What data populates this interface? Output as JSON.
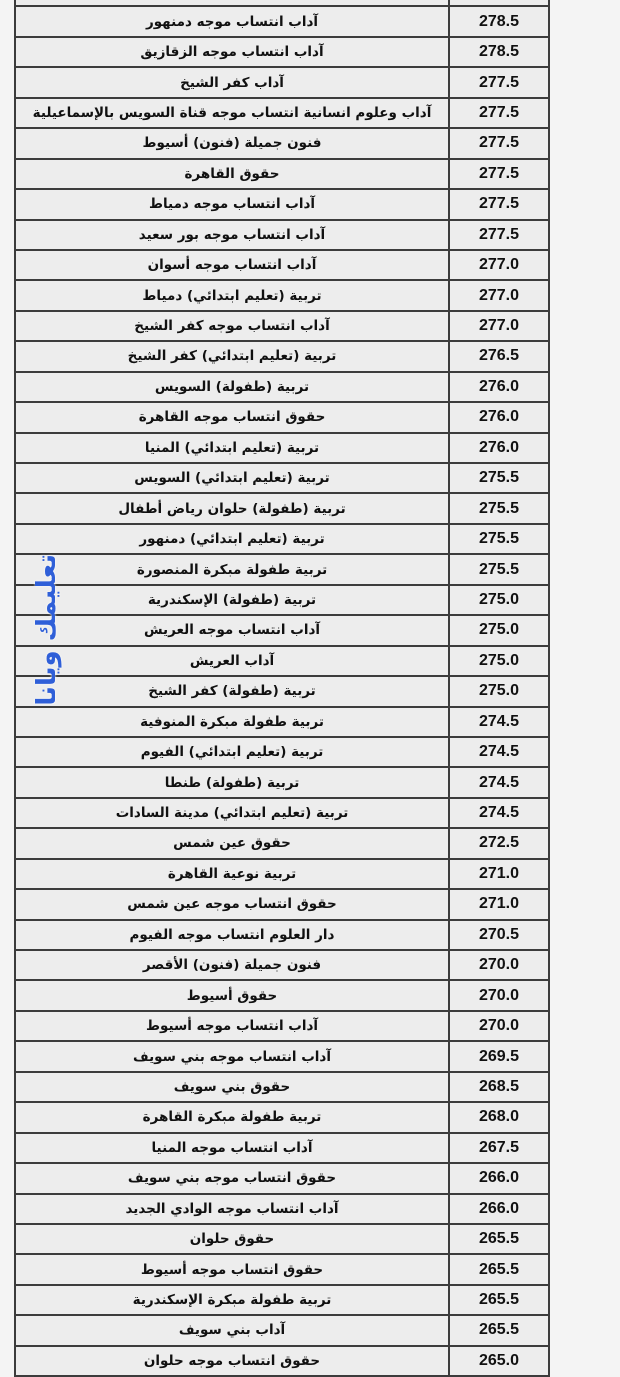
{
  "watermark": "تعليمك ويانا",
  "rows": [
    {
      "name": "",
      "score": ""
    },
    {
      "name": "آداب انتساب موجه دمنهور",
      "score": "278.5"
    },
    {
      "name": "آداب انتساب موجه الزقازيق",
      "score": "278.5"
    },
    {
      "name": "آداب كفر الشيخ",
      "score": "277.5"
    },
    {
      "name": "آداب وعلوم انسانية انتساب موجه قناة السويس بالإسماعيلية",
      "score": "277.5"
    },
    {
      "name": "فنون جميلة (فنون) أسيوط",
      "score": "277.5"
    },
    {
      "name": "حقوق القاهرة",
      "score": "277.5"
    },
    {
      "name": "آداب انتساب موجه دمياط",
      "score": "277.5"
    },
    {
      "name": "آداب انتساب موجه بور سعيد",
      "score": "277.5"
    },
    {
      "name": "آداب انتساب موجه أسوان",
      "score": "277.0"
    },
    {
      "name": "تربية (تعليم ابتدائي) دمياط",
      "score": "277.0"
    },
    {
      "name": "آداب انتساب موجه كفر الشيخ",
      "score": "277.0"
    },
    {
      "name": "تربية (تعليم ابتدائي) كفر الشيخ",
      "score": "276.5"
    },
    {
      "name": "تربية (طفولة) السويس",
      "score": "276.0"
    },
    {
      "name": "حقوق انتساب موجه القاهرة",
      "score": "276.0"
    },
    {
      "name": "تربية (تعليم ابتدائي) المنيا",
      "score": "276.0"
    },
    {
      "name": "تربية (تعليم ابتدائي) السويس",
      "score": "275.5"
    },
    {
      "name": "تربية (طفولة) حلوان رياض أطفال",
      "score": "275.5"
    },
    {
      "name": "تربية (تعليم ابتدائي) دمنهور",
      "score": "275.5"
    },
    {
      "name": "تربية طفولة مبكرة المنصورة",
      "score": "275.5"
    },
    {
      "name": "تربية (طفولة) الإسكندرية",
      "score": "275.0"
    },
    {
      "name": "آداب انتساب موجه العريش",
      "score": "275.0"
    },
    {
      "name": "آداب العريش",
      "score": "275.0"
    },
    {
      "name": "تربية (طفولة) كفر الشيخ",
      "score": "275.0"
    },
    {
      "name": "تربية طفولة مبكرة المنوفية",
      "score": "274.5"
    },
    {
      "name": "تربية (تعليم ابتدائي) الفيوم",
      "score": "274.5"
    },
    {
      "name": "تربية (طفولة) طنطا",
      "score": "274.5"
    },
    {
      "name": "تربية (تعليم ابتدائي) مدينة السادات",
      "score": "274.5"
    },
    {
      "name": "حقوق عين شمس",
      "score": "272.5"
    },
    {
      "name": "تربية نوعية القاهرة",
      "score": "271.0"
    },
    {
      "name": "حقوق انتساب موجه عين شمس",
      "score": "271.0"
    },
    {
      "name": "دار العلوم انتساب موجه الفيوم",
      "score": "270.5"
    },
    {
      "name": "فنون جميلة (فنون) الأقصر",
      "score": "270.0"
    },
    {
      "name": "حقوق أسيوط",
      "score": "270.0"
    },
    {
      "name": "آداب انتساب موجه أسيوط",
      "score": "270.0"
    },
    {
      "name": "آداب انتساب موجه بني سويف",
      "score": "269.5"
    },
    {
      "name": "حقوق بني سويف",
      "score": "268.5"
    },
    {
      "name": "تربية طفولة مبكرة القاهرة",
      "score": "268.0"
    },
    {
      "name": "آداب انتساب موجه المنيا",
      "score": "267.5"
    },
    {
      "name": "حقوق انتساب موجه بني سويف",
      "score": "266.0"
    },
    {
      "name": "آداب انتساب موجه الوادي الجديد",
      "score": "266.0"
    },
    {
      "name": "حقوق حلوان",
      "score": "265.5"
    },
    {
      "name": "حقوق انتساب موجه أسيوط",
      "score": "265.5"
    },
    {
      "name": "تربية طفولة مبكرة الإسكندرية",
      "score": "265.5"
    },
    {
      "name": "آداب بني سويف",
      "score": "265.5"
    },
    {
      "name": "حقوق انتساب موجه حلوان",
      "score": "265.0"
    }
  ]
}
